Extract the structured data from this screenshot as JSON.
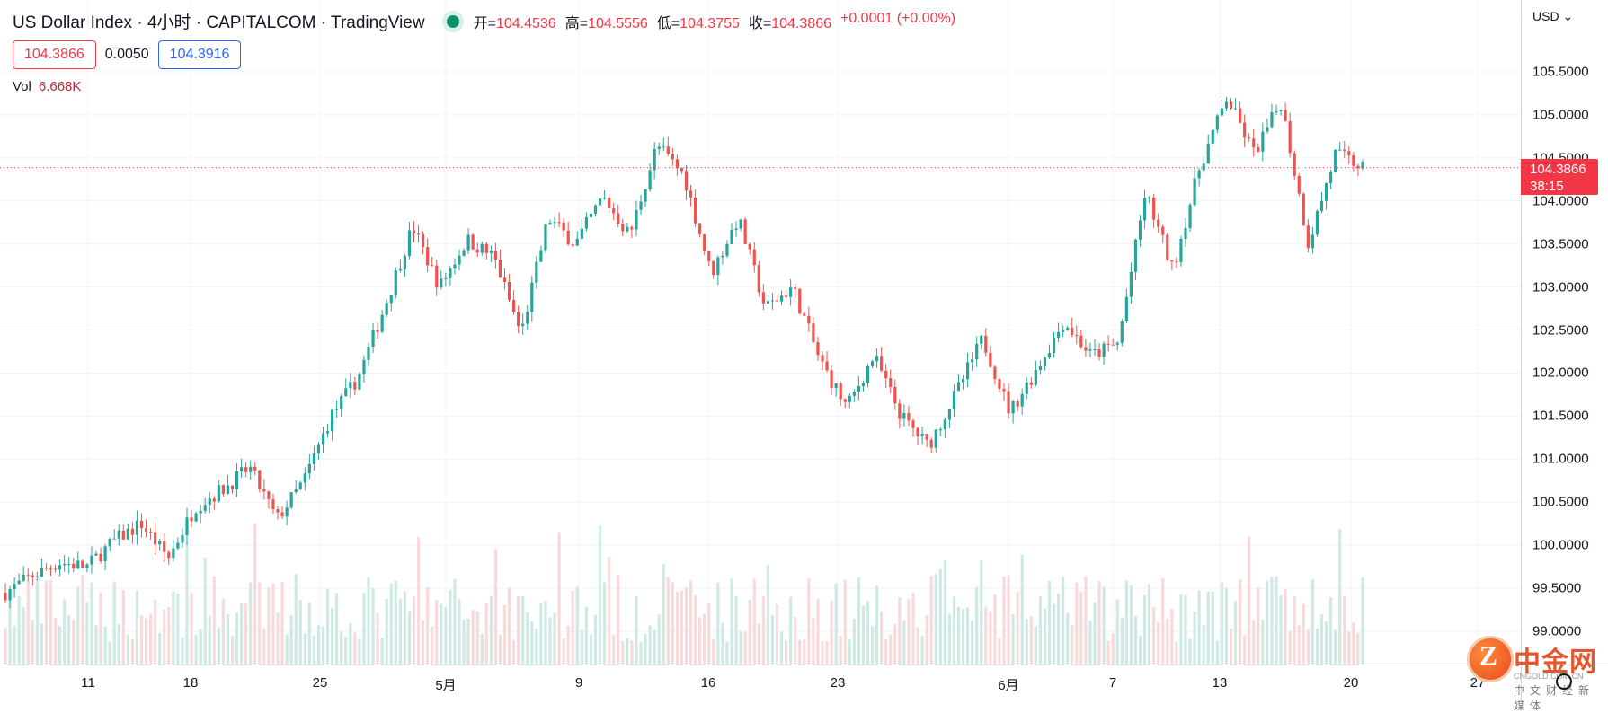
{
  "header": {
    "title": "US Dollar Index · 4小时 · CAPITALCOM · TradingView",
    "ohlc": [
      {
        "label": "开=",
        "value": "104.4536"
      },
      {
        "label": "高=",
        "value": "104.5556"
      },
      {
        "label": "低=",
        "value": "104.3755"
      },
      {
        "label": "收=",
        "value": "104.3866"
      },
      {
        "label": "",
        "value": "+0.0001 (+0.00%)"
      }
    ]
  },
  "quote": {
    "bid": "104.3866",
    "spread": "0.0050",
    "ask": "104.3916"
  },
  "volume": {
    "label": "Vol",
    "value": "6.668K"
  },
  "axis": {
    "currency": "USD",
    "current_price": "104.3866",
    "countdown": "38:15"
  },
  "watermark": {
    "name": "中金网",
    "site": "CNGOLD.COM.CN",
    "tagline": "中文财经新媒体"
  },
  "colors": {
    "up": "#26a69a",
    "down": "#ef5350",
    "vol_up": "#cfe9e5",
    "vol_down": "#f7dada",
    "grid": "#f0f3fa"
  },
  "chart_data": {
    "type": "candlestick",
    "ylim": [
      99.0,
      105.8
    ],
    "y_ticks": [
      "105.5000",
      "105.0000",
      "104.5000",
      "104.0000",
      "103.5000",
      "103.0000",
      "102.5000",
      "102.0000",
      "101.5000",
      "101.0000",
      "100.5000",
      "100.0000",
      "99.5000",
      "99.0000"
    ],
    "x_ticks": [
      "11",
      "18",
      "25",
      "5月",
      "9",
      "16",
      "23",
      "6月",
      "7",
      "13",
      "20",
      "27"
    ],
    "close_path": [
      99.45,
      99.65,
      99.8,
      99.75,
      100.05,
      100.25,
      99.85,
      100.45,
      100.65,
      100.9,
      100.3,
      100.75,
      101.5,
      101.95,
      102.8,
      103.7,
      103.0,
      103.55,
      103.35,
      102.45,
      103.8,
      103.5,
      104.05,
      103.6,
      104.65,
      104.3,
      103.15,
      103.8,
      102.75,
      103.0,
      102.15,
      101.6,
      102.2,
      101.5,
      101.15,
      101.75,
      102.4,
      101.55,
      102.05,
      102.6,
      102.2,
      102.35,
      104.1,
      103.2,
      104.4,
      105.2,
      104.55,
      105.15,
      103.5,
      104.55,
      104.39
    ]
  }
}
